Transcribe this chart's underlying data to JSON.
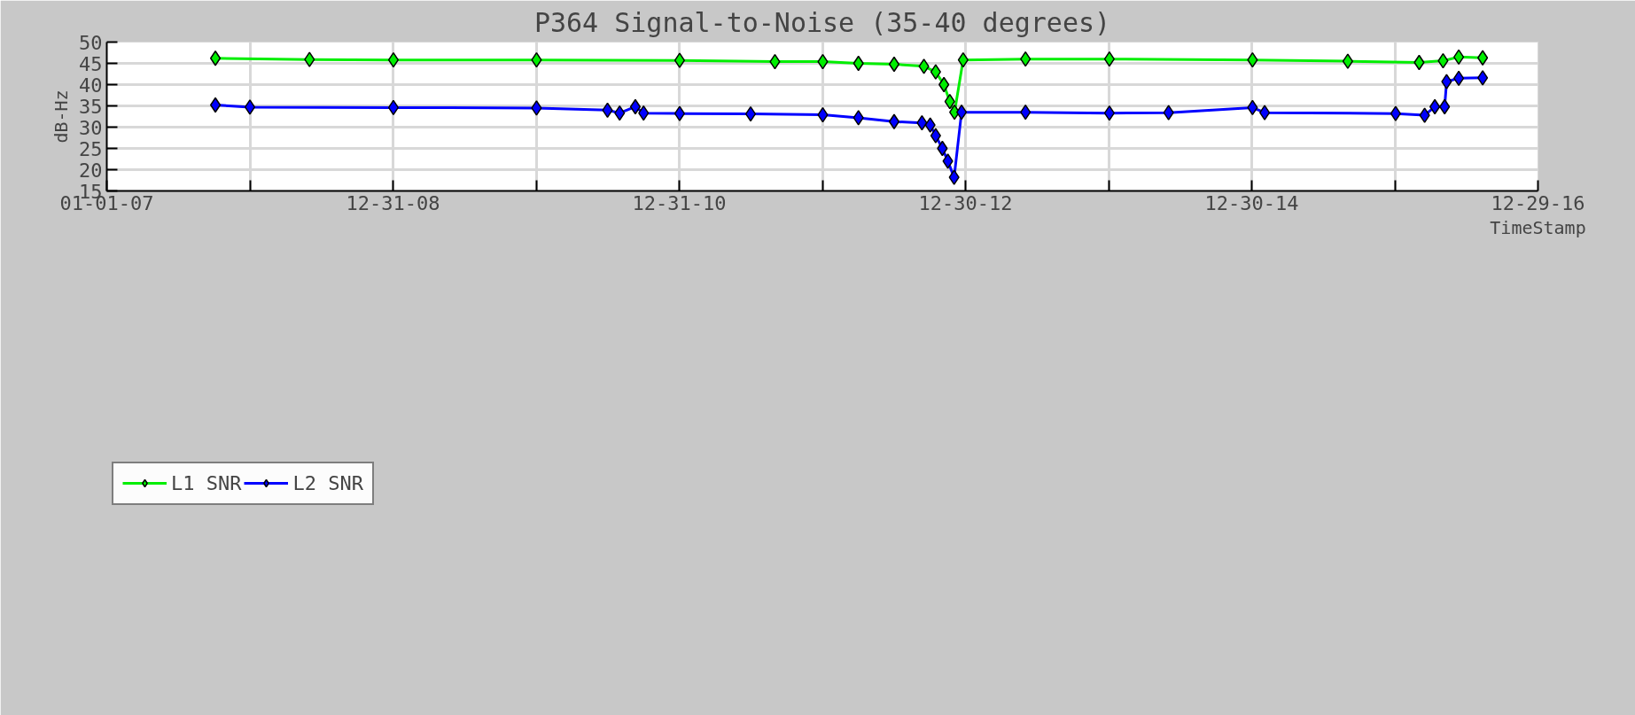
{
  "chart_data": {
    "type": "line",
    "title": "P364 Signal-to-Noise (35-40 degrees)",
    "xlabel": "TimeStamp",
    "ylabel": "dB-Hz",
    "xlim": [
      "2007-01-01",
      "2016-12-29"
    ],
    "xticks": [
      {
        "value": "2007-01-01",
        "label": "01-01-07"
      },
      {
        "value": "2008-01-01",
        "label": null
      },
      {
        "value": "2008-12-31",
        "label": "12-31-08"
      },
      {
        "value": "2009-12-31",
        "label": null
      },
      {
        "value": "2010-12-31",
        "label": "12-31-10"
      },
      {
        "value": "2011-12-31",
        "label": null
      },
      {
        "value": "2012-12-30",
        "label": "12-30-12"
      },
      {
        "value": "2013-12-30",
        "label": null
      },
      {
        "value": "2014-12-30",
        "label": "12-30-14"
      },
      {
        "value": "2015-12-30",
        "label": null
      },
      {
        "value": "2016-12-29",
        "label": "12-29-16"
      }
    ],
    "ylim": [
      15,
      50
    ],
    "yticks": [
      15,
      20,
      25,
      30,
      35,
      40,
      45,
      50
    ],
    "grid": true,
    "legend": "bottom",
    "marker": "diamond",
    "line_style": "solid",
    "series": [
      {
        "name": "L1 SNR",
        "color": "#00ee00",
        "x": [
          "2007-10-05",
          "2008-06-01",
          "2009-01-01",
          "2010-01-01",
          "2011-01-01",
          "2011-09-01",
          "2012-01-01",
          "2012-04-01",
          "2012-07-01",
          "2012-09-15",
          "2012-10-15",
          "2012-11-05",
          "2012-11-20",
          "2012-12-02",
          "2012-12-24",
          "2013-06-01",
          "2014-01-01",
          "2015-01-01",
          "2015-09-01",
          "2016-03-01",
          "2016-05-01",
          "2016-06-10",
          "2016-08-10"
        ],
        "values": [
          46.2,
          45.9,
          45.8,
          45.8,
          45.7,
          45.4,
          45.4,
          45.0,
          44.8,
          44.3,
          43.0,
          40.0,
          36.0,
          33.5,
          45.8,
          46.0,
          46.0,
          45.8,
          45.5,
          45.2,
          45.6,
          46.5,
          46.3
        ]
      },
      {
        "name": "L2 SNR",
        "color": "#0000ff",
        "x": [
          "2007-10-05",
          "2008-01-01",
          "2009-01-01",
          "2010-01-01",
          "2010-07-01",
          "2010-08-01",
          "2010-09-10",
          "2010-10-01",
          "2011-01-01",
          "2011-07-01",
          "2012-01-01",
          "2012-04-01",
          "2012-07-01",
          "2012-09-10",
          "2012-10-01",
          "2012-10-15",
          "2012-11-01",
          "2012-11-15",
          "2012-12-01",
          "2012-12-20",
          "2013-06-01",
          "2014-01-01",
          "2014-06-01",
          "2015-01-01",
          "2015-02-01",
          "2016-01-01",
          "2016-03-15",
          "2016-04-10",
          "2016-05-05",
          "2016-05-10",
          "2016-06-10",
          "2016-08-10"
        ],
        "values": [
          35.2,
          34.7,
          34.6,
          34.5,
          34.0,
          33.3,
          34.8,
          33.3,
          33.2,
          33.1,
          32.9,
          32.2,
          31.3,
          31.0,
          30.5,
          28.0,
          25.0,
          22.0,
          18.2,
          33.5,
          33.5,
          33.3,
          33.4,
          34.6,
          33.4,
          33.2,
          32.8,
          34.8,
          34.8,
          40.7,
          41.5,
          41.6
        ]
      }
    ]
  }
}
